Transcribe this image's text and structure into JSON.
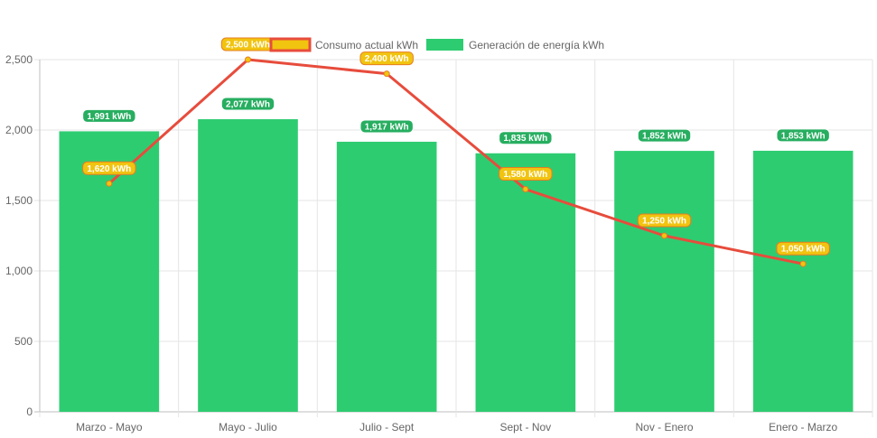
{
  "chart_data": {
    "type": "bar",
    "categories": [
      "Marzo - Mayo",
      "Mayo - Julio",
      "Julio - Sept",
      "Sept - Nov",
      "Nov - Enero",
      "Enero - Marzo"
    ],
    "ylim": [
      0,
      2500
    ],
    "yticks": [
      0,
      500,
      1000,
      1500,
      2000,
      2500
    ],
    "ytick_labels": [
      "0",
      "500",
      "1,000",
      "1,500",
      "2,000",
      "2,500"
    ],
    "grid": true,
    "legend_position": "top-center",
    "unit_suffix": " kWh",
    "series": [
      {
        "name": "Consumo actual kWh",
        "type": "line",
        "color": "#e74c3c",
        "point_color": "#f1c40f",
        "label_bg": "#f1c40f",
        "label_border": "#e67e22",
        "values": [
          1620,
          2500,
          2400,
          1580,
          1250,
          1050
        ],
        "labels": [
          "1,620 kWh",
          "2,500 kWh",
          "2,400 kWh",
          "1,580 kWh",
          "1,250 kWh",
          "1,050 kWh"
        ]
      },
      {
        "name": "Generación de energía kWh",
        "type": "bar",
        "color": "#2ecc71",
        "label_bg": "#27ae60",
        "values": [
          1991,
          2077,
          1917,
          1835,
          1852,
          1853
        ],
        "labels": [
          "1,991 kWh",
          "2,077 kWh",
          "1,917 kWh",
          "1,835 kWh",
          "1,852 kWh",
          "1,853 kWh"
        ]
      }
    ]
  }
}
